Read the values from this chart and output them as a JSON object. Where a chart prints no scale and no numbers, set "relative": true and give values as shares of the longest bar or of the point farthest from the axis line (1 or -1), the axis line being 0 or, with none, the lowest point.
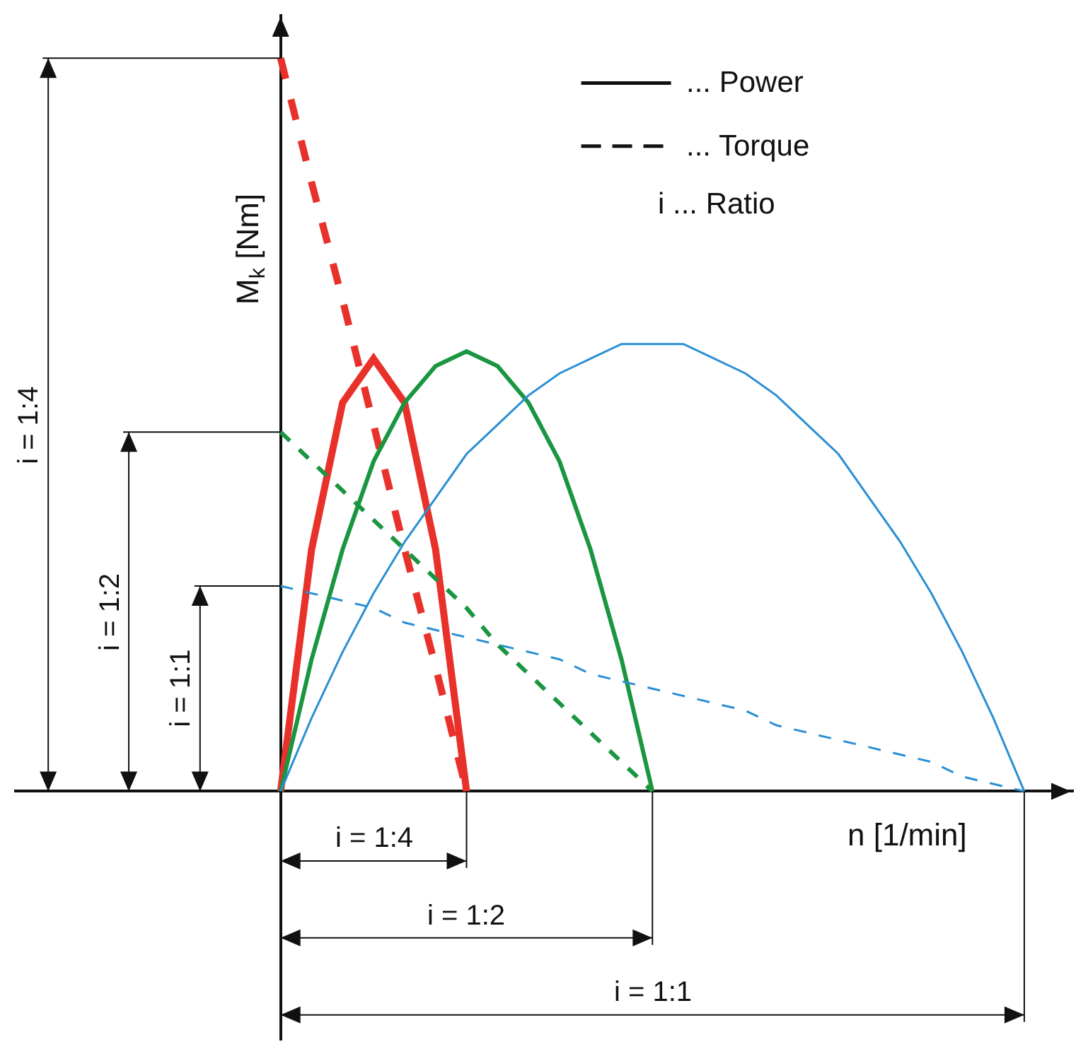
{
  "chart_data": {
    "type": "line",
    "relative": true,
    "xlabel": "n [1/min]",
    "ylabel": "M$_{k}$ [Nm]",
    "marker": "none",
    "categories": [
      null,
      null,
      null,
      null,
      null,
      null,
      null,
      null,
      null,
      null,
      null,
      null,
      null,
      null,
      null,
      null,
      null,
      null,
      null,
      null,
      null,
      null,
      null,
      null,
      null
    ],
    "series": [
      {
        "color": "#e8312a",
        "line_style": "solid",
        "values": [
          0,
          0.33,
          0.53,
          0.59,
          0.53,
          0.33,
          0,
          null,
          null,
          null,
          null,
          null,
          null,
          null,
          null,
          null,
          null,
          null,
          null,
          null,
          null,
          null,
          null,
          null,
          null
        ]
      },
      {
        "color": "#e8312a",
        "line_style": "dashed",
        "values": [
          1,
          0.83,
          0.67,
          0.5,
          0.33,
          0.17,
          0,
          null,
          null,
          null,
          null,
          null,
          null,
          null,
          null,
          null,
          null,
          null,
          null,
          null,
          null,
          null,
          null,
          null,
          null
        ]
      },
      {
        "color": "#1a9641",
        "line_style": "solid",
        "values": [
          0,
          0.18,
          0.33,
          0.45,
          0.53,
          0.58,
          0.6,
          0.58,
          0.53,
          0.45,
          0.33,
          0.18,
          0,
          null,
          null,
          null,
          null,
          null,
          null,
          null,
          null,
          null,
          null,
          null,
          null
        ]
      },
      {
        "color": "#1a9641",
        "line_style": "dashed",
        "values": [
          0.49,
          0.45,
          0.41,
          0.37,
          0.33,
          0.29,
          0.25,
          0.2,
          0.16,
          0.12,
          0.08,
          0.04,
          0,
          null,
          null,
          null,
          null,
          null,
          null,
          null,
          null,
          null,
          null,
          null,
          null
        ]
      },
      {
        "color": "#2a8fd4",
        "line_style": "solid",
        "values": [
          0,
          0.1,
          0.19,
          0.27,
          0.34,
          0.4,
          0.46,
          0.5,
          0.54,
          0.57,
          0.59,
          0.61,
          0.61,
          0.61,
          0.59,
          0.57,
          0.54,
          0.5,
          0.46,
          0.4,
          0.34,
          0.27,
          0.19,
          0.1,
          0
        ]
      },
      {
        "color": "#2a8fd4",
        "line_style": "dashed",
        "values": [
          0.28,
          0.27,
          0.26,
          0.25,
          0.23,
          0.22,
          0.21,
          0.2,
          0.19,
          0.18,
          0.16,
          0.15,
          0.14,
          0.13,
          0.12,
          0.11,
          0.09,
          0.08,
          0.07,
          0.06,
          0.05,
          0.04,
          0.02,
          0.01,
          0
        ]
      }
    ],
    "annotations": [
      "... Power",
      "... Torque",
      "i ... Ratio",
      "i = 1:4",
      "i = 1:2",
      "i = 1:1",
      "i = 1:4",
      "i = 1:2",
      "i = 1:1"
    ]
  }
}
